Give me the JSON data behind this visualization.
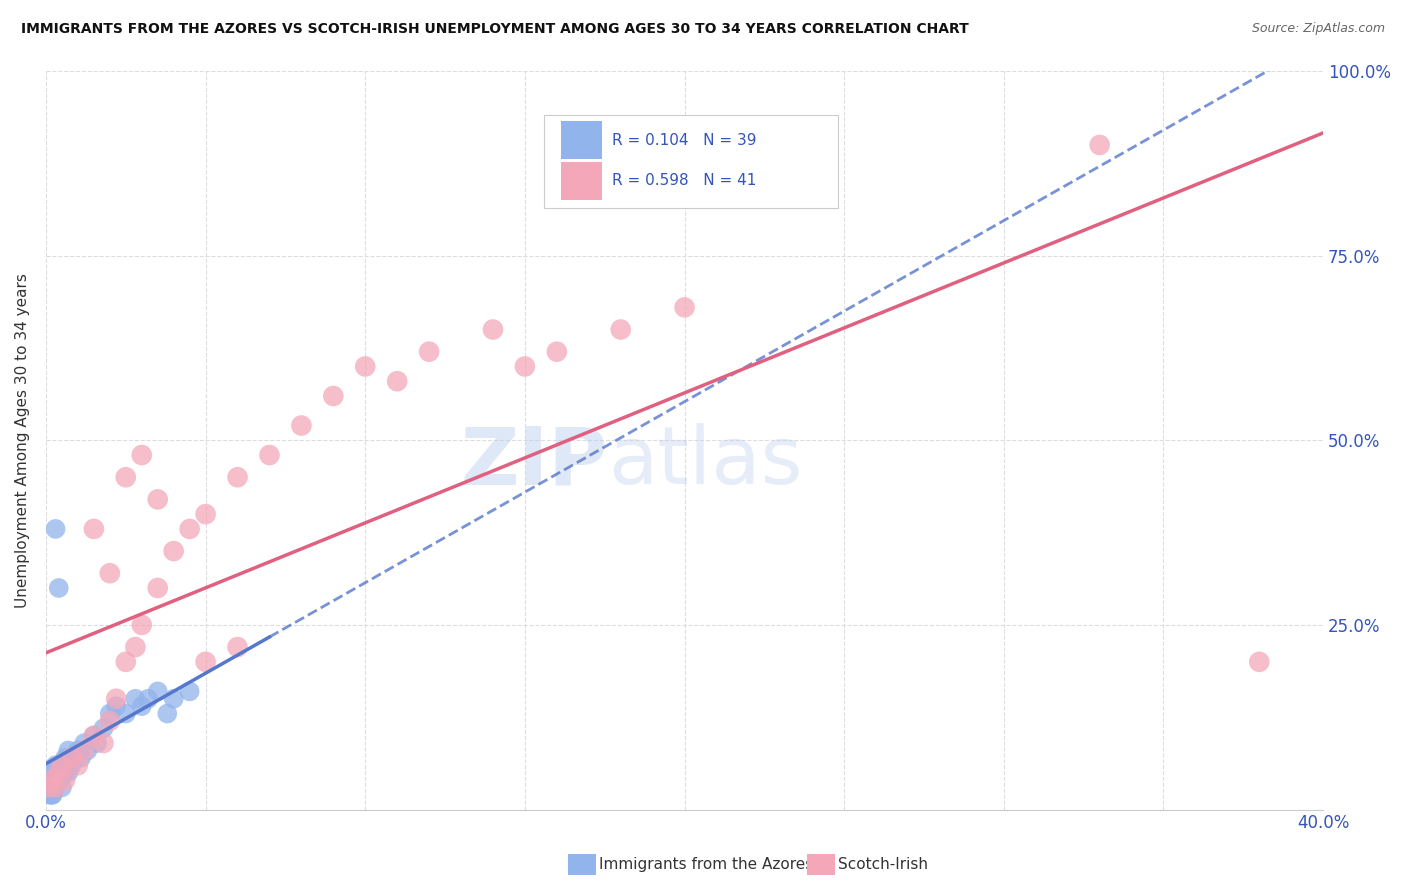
{
  "title": "IMMIGRANTS FROM THE AZORES VS SCOTCH-IRISH UNEMPLOYMENT AMONG AGES 30 TO 34 YEARS CORRELATION CHART",
  "source": "Source: ZipAtlas.com",
  "ylabel": "Unemployment Among Ages 30 to 34 years",
  "xlim": [
    0.0,
    0.4
  ],
  "ylim": [
    0.0,
    1.0
  ],
  "xticks": [
    0.0,
    0.05,
    0.1,
    0.15,
    0.2,
    0.25,
    0.3,
    0.35,
    0.4
  ],
  "yticks": [
    0.0,
    0.25,
    0.5,
    0.75,
    1.0
  ],
  "yticklabels": [
    "",
    "25.0%",
    "50.0%",
    "75.0%",
    "100.0%"
  ],
  "azores_color": "#92B4EC",
  "scotch_color": "#F4A7B9",
  "azores_line_color": "#5577CC",
  "scotch_line_color": "#E06080",
  "background_color": "#FFFFFF",
  "grid_color": "#DDDDDD",
  "legend_R_azores": "R = 0.104",
  "legend_N_azores": "N = 39",
  "legend_R_scotch": "R = 0.598",
  "legend_N_scotch": "N = 41",
  "watermark": "ZIPatlas",
  "azores_x": [
    0.001,
    0.001,
    0.001,
    0.002,
    0.002,
    0.002,
    0.003,
    0.003,
    0.003,
    0.004,
    0.004,
    0.005,
    0.005,
    0.006,
    0.006,
    0.007,
    0.007,
    0.008,
    0.009,
    0.01,
    0.011,
    0.012,
    0.013,
    0.015,
    0.016,
    0.018,
    0.02,
    0.022,
    0.025,
    0.028,
    0.03,
    0.032,
    0.035,
    0.038,
    0.04,
    0.045,
    0.003,
    0.004,
    0.002
  ],
  "azores_y": [
    0.02,
    0.03,
    0.04,
    0.02,
    0.03,
    0.05,
    0.03,
    0.04,
    0.06,
    0.04,
    0.05,
    0.03,
    0.06,
    0.05,
    0.07,
    0.05,
    0.08,
    0.06,
    0.07,
    0.08,
    0.07,
    0.09,
    0.08,
    0.1,
    0.09,
    0.11,
    0.13,
    0.14,
    0.13,
    0.15,
    0.14,
    0.15,
    0.16,
    0.13,
    0.15,
    0.16,
    0.38,
    0.3,
    0.02
  ],
  "scotch_x": [
    0.001,
    0.002,
    0.003,
    0.004,
    0.005,
    0.006,
    0.008,
    0.01,
    0.012,
    0.015,
    0.018,
    0.02,
    0.022,
    0.025,
    0.028,
    0.03,
    0.035,
    0.04,
    0.045,
    0.05,
    0.06,
    0.07,
    0.08,
    0.09,
    0.1,
    0.11,
    0.12,
    0.14,
    0.15,
    0.16,
    0.18,
    0.2,
    0.015,
    0.02,
    0.025,
    0.03,
    0.035,
    0.05,
    0.06,
    0.33,
    0.38
  ],
  "scotch_y": [
    0.03,
    0.04,
    0.03,
    0.05,
    0.06,
    0.04,
    0.07,
    0.06,
    0.08,
    0.1,
    0.09,
    0.12,
    0.15,
    0.2,
    0.22,
    0.25,
    0.3,
    0.35,
    0.38,
    0.4,
    0.45,
    0.48,
    0.52,
    0.56,
    0.6,
    0.58,
    0.62,
    0.65,
    0.6,
    0.62,
    0.65,
    0.68,
    0.38,
    0.32,
    0.45,
    0.48,
    0.42,
    0.2,
    0.22,
    0.9,
    0.2
  ]
}
